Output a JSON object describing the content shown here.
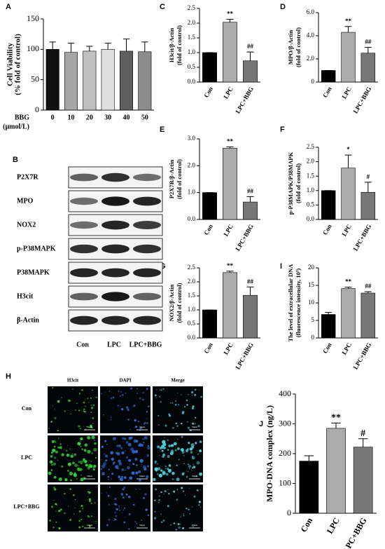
{
  "chart_data": [
    {
      "type": "bar",
      "panel": "A",
      "ylabel": [
        "Cell Viability",
        "(% fold of control)"
      ],
      "xlabel": [
        "BBG",
        "(μmol/L)"
      ],
      "categories": [
        "0",
        "10",
        "20",
        "30",
        "40",
        "50"
      ],
      "values": [
        100,
        95,
        97,
        100,
        97,
        96
      ],
      "errors": [
        12,
        15,
        8,
        10,
        20,
        16
      ],
      "colors": [
        "#111111",
        "#a6a6a6",
        "#c0c0c0",
        "#dedede",
        "#5e5e5e",
        "#8c8c8c"
      ],
      "ylim": [
        0,
        150
      ],
      "yticks": [
        0,
        50,
        100,
        150
      ]
    },
    {
      "type": "bar",
      "panel": "C",
      "ylabel": [
        "H3cit/β-Actin",
        "(fold of control)"
      ],
      "categories": [
        "Con",
        "LPC",
        "LPC+BBG"
      ],
      "values": [
        1.0,
        2.03,
        0.72
      ],
      "errors": [
        0,
        0.1,
        0.3
      ],
      "annotations": [
        null,
        "**",
        "##"
      ],
      "colors": [
        "#000000",
        "#ababab",
        "#777777"
      ],
      "ylim": [
        0,
        2.5
      ],
      "yticks": [
        {
          "value": 0,
          "label": "0.0"
        },
        0.5,
        {
          "value": 1,
          "label": "1.0"
        },
        1.5,
        {
          "value": 2,
          "label": "2.0"
        },
        2.5
      ]
    },
    {
      "type": "bar",
      "panel": "D",
      "ylabel": [
        "MPO/β-Actin",
        "(fold of control)"
      ],
      "categories": [
        "Con",
        "LPC",
        "LPC+BBG"
      ],
      "values": [
        1.0,
        4.3,
        2.5
      ],
      "errors": [
        0,
        0.5,
        0.5
      ],
      "annotations": [
        null,
        "**",
        "##"
      ],
      "colors": [
        "#000000",
        "#ababab",
        "#777777"
      ],
      "ylim": [
        0,
        6
      ],
      "yticks": [
        0,
        {
          "value": 2,
          "label": "2.0"
        },
        {
          "value": 4,
          "label": "4.0"
        },
        {
          "value": 6,
          "label": "6.0"
        }
      ]
    },
    {
      "type": "bar",
      "panel": "E",
      "ylabel": [
        "P2X7R/β-Actin",
        "(fold of control)"
      ],
      "categories": [
        "Con",
        "LPC",
        "LPC+BBG"
      ],
      "values": [
        1.0,
        2.65,
        0.65
      ],
      "errors": [
        0,
        0.05,
        0.2
      ],
      "annotations": [
        null,
        "**",
        "##"
      ],
      "colors": [
        "#000000",
        "#ababab",
        "#777777"
      ],
      "ylim": [
        0,
        3
      ],
      "yticks": [
        {
          "value": 0,
          "label": "0.0"
        },
        {
          "value": 1,
          "label": "1.0"
        },
        {
          "value": 2,
          "label": "2.0"
        },
        {
          "value": 3,
          "label": "3.0"
        }
      ]
    },
    {
      "type": "bar",
      "panel": "F",
      "ylabel": [
        "p-P38MAPK/P38MAPK",
        "(fold of control)"
      ],
      "categories": [
        "Con",
        "LPC",
        "LPC+BBG"
      ],
      "values": [
        1.0,
        1.78,
        0.94
      ],
      "errors": [
        0,
        0.45,
        0.35
      ],
      "annotations": [
        null,
        "*",
        "#"
      ],
      "colors": [
        "#000000",
        "#ababab",
        "#777777"
      ],
      "ylim": [
        0,
        2.5
      ],
      "yticks": [
        {
          "value": 0,
          "label": "0.0"
        },
        0.5,
        {
          "value": 1,
          "label": "1.0"
        },
        1.5,
        {
          "value": 2,
          "label": "2.0"
        },
        2.5
      ]
    },
    {
      "type": "bar",
      "panel": "G",
      "ylabel": [
        "NOX2/β-Actin",
        "(fold of control)"
      ],
      "categories": [
        "Con",
        "LPC",
        "LPC+BBG"
      ],
      "values": [
        1.0,
        2.33,
        1.52
      ],
      "errors": [
        0,
        0.05,
        0.3
      ],
      "annotations": [
        null,
        "**",
        "##"
      ],
      "colors": [
        "#000000",
        "#ababab",
        "#777777"
      ],
      "ylim": [
        0,
        2.5
      ],
      "yticks": [
        {
          "value": 0,
          "label": "0.0"
        },
        0.5,
        {
          "value": 1,
          "label": "1.0"
        },
        1.5,
        {
          "value": 2,
          "label": "2.0"
        },
        2.5
      ]
    },
    {
      "type": "bar",
      "panel": "I",
      "ylabel": [
        "The level of extracellular DNA",
        "(fluorescence intensity, 10³)"
      ],
      "categories": [
        "Con",
        "LPC",
        "LPC+BBG"
      ],
      "values": [
        6.7,
        14.1,
        12.8
      ],
      "errors": [
        0.6,
        0.4,
        0.4
      ],
      "annotations": [
        null,
        "**",
        "##"
      ],
      "colors": [
        "#000000",
        "#ababab",
        "#777777"
      ],
      "ylim": [
        0,
        20
      ],
      "yticks": [
        0,
        5,
        10,
        15,
        20
      ]
    },
    {
      "type": "bar",
      "panel": "J",
      "ylabel": [
        "MPO-DNA complex (ng/L)"
      ],
      "categories": [
        "Con",
        "LPC",
        "LPC+BBG"
      ],
      "values": [
        175,
        285,
        222
      ],
      "errors": [
        18,
        18,
        28
      ],
      "annotations": [
        null,
        "**",
        "#"
      ],
      "colors": [
        "#000000",
        "#ababab",
        "#777777"
      ],
      "ylim": [
        0,
        400
      ],
      "yticks": [
        0,
        100,
        200,
        300,
        400
      ]
    }
  ],
  "blot": {
    "panel": "B",
    "proteins": [
      "P2X7R",
      "MPO",
      "NOX2",
      "p-P38MAPK",
      "P38MAPK",
      "H3cit",
      "β-Actin"
    ],
    "lanes": [
      "Con",
      "LPC",
      "LPC+BBG"
    ]
  },
  "micro": {
    "panel": "H",
    "channels": [
      "H3cit",
      "DAPI",
      "Merge"
    ],
    "groups": [
      "Con",
      "LPC",
      "LPC+BBG"
    ],
    "scale_bar": "50μm"
  }
}
